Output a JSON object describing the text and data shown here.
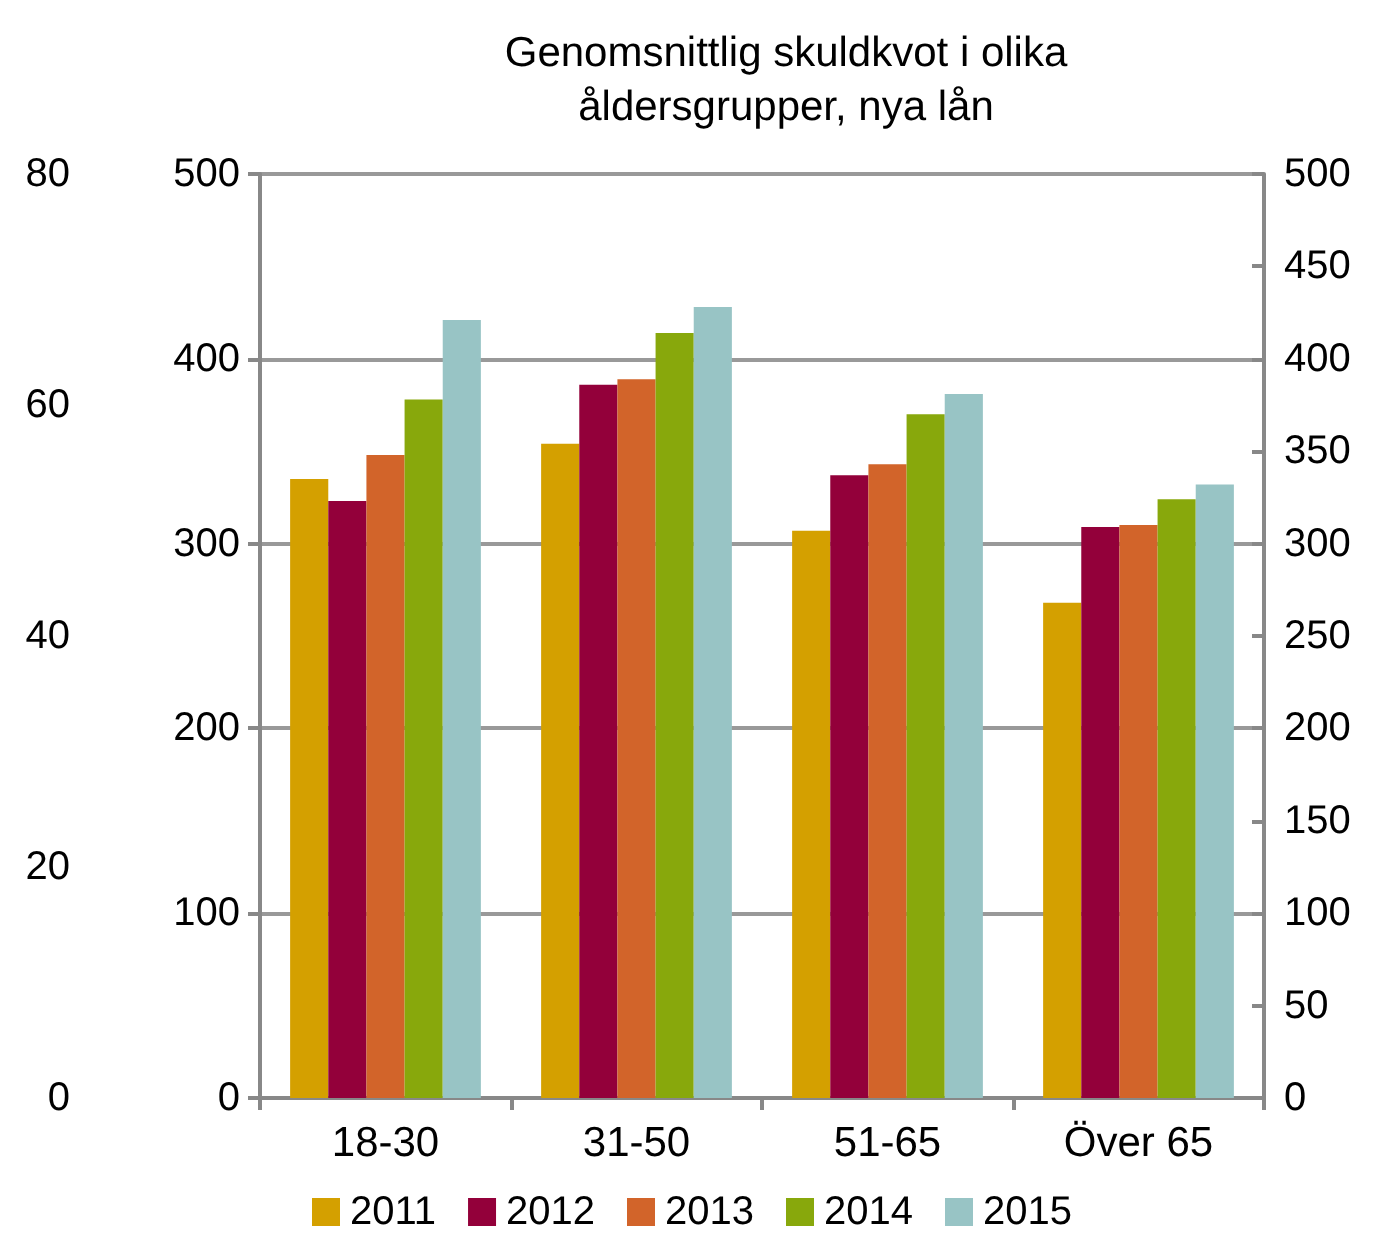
{
  "chart_data": {
    "type": "bar",
    "title": "Genomsnittlig skuldkvot i olika\nåldersgrupper, nya lån",
    "categories": [
      "18-30",
      "31-50",
      "51-65",
      "Över 65"
    ],
    "series": [
      {
        "name": "2011",
        "color": "#d4a000",
        "values": [
          335,
          354,
          307,
          268
        ]
      },
      {
        "name": "2012",
        "color": "#93003a",
        "values": [
          323,
          386,
          337,
          309
        ]
      },
      {
        "name": "2013",
        "color": "#d2642a",
        "values": [
          348,
          389,
          343,
          310
        ]
      },
      {
        "name": "2014",
        "color": "#88a80c",
        "values": [
          378,
          414,
          370,
          324
        ]
      },
      {
        "name": "2015",
        "color": "#98c4c5",
        "values": [
          421,
          428,
          381,
          332
        ]
      }
    ],
    "ylim": [
      0,
      500
    ],
    "yticks": [
      0,
      100,
      200,
      300,
      400,
      500
    ],
    "y2lim": [
      0,
      500
    ],
    "y2ticks": [
      0,
      50,
      100,
      150,
      200,
      250,
      300,
      350,
      400,
      450,
      500
    ],
    "y3lim": [
      0,
      80
    ],
    "y3ticks": [
      0,
      20,
      40,
      60,
      80
    ],
    "grid": "y",
    "legend": "bottom"
  }
}
